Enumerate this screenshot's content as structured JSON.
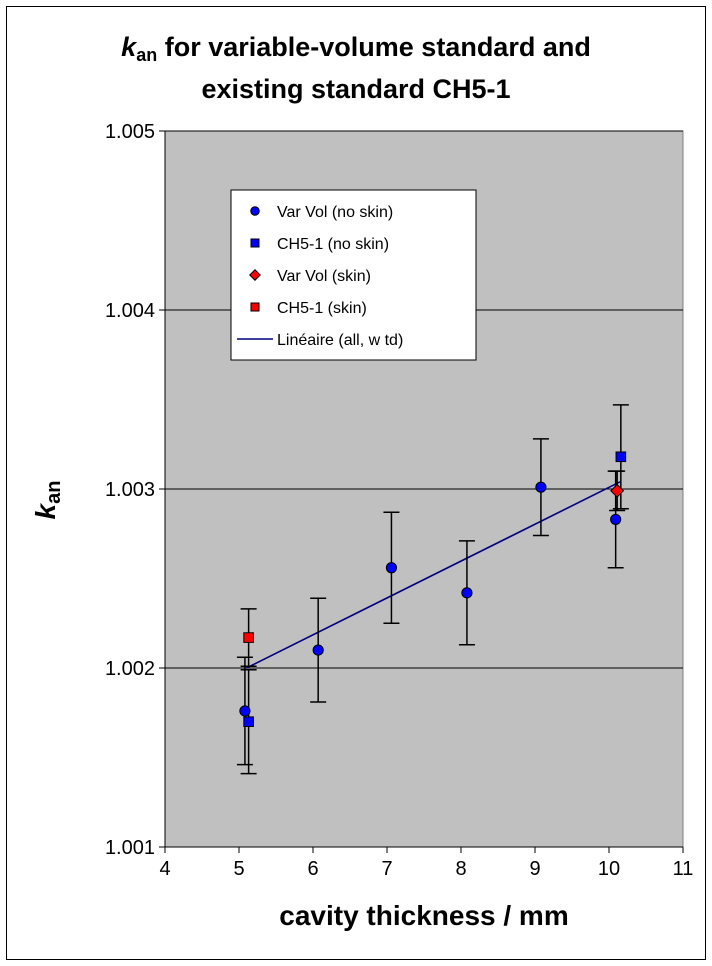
{
  "chart_data": {
    "type": "scatter",
    "title": {
      "line1_italic": "k",
      "line1_sub": "an",
      "line1_rest": " for variable-volume standard and",
      "line2": "existing standard CH5-1"
    },
    "xlabel": "cavity thickness / mm",
    "ylabel": {
      "italic": "k",
      "sub": "an"
    },
    "xlim": [
      4,
      11
    ],
    "ylim": [
      1.001,
      1.005
    ],
    "x_ticks": [
      "4",
      "5",
      "6",
      "7",
      "8",
      "9",
      "10",
      "11"
    ],
    "y_ticks": [
      "1.001",
      "1.002",
      "1.003",
      "1.004",
      "1.005"
    ],
    "y_tick_values": [
      1.001,
      1.002,
      1.003,
      1.004,
      1.005
    ],
    "grid": "horizontal",
    "legend_position": "upper-left",
    "series": [
      {
        "name": "Var Vol (no skin)",
        "marker": "circle",
        "color": "#0000ff",
        "points": [
          {
            "x": 5.08,
            "y": 1.00176,
            "err": 0.0003
          },
          {
            "x": 6.07,
            "y": 1.0021,
            "err": 0.00029
          },
          {
            "x": 7.06,
            "y": 1.00256,
            "err": 0.00031
          },
          {
            "x": 8.08,
            "y": 1.00242,
            "err": 0.00029
          },
          {
            "x": 9.08,
            "y": 1.00301,
            "err": 0.00027
          },
          {
            "x": 10.09,
            "y": 1.00283,
            "err": 0.00027
          }
        ]
      },
      {
        "name": "CH5-1 (no skin)",
        "marker": "square",
        "color": "#0000ff",
        "points": [
          {
            "x": 5.13,
            "y": 1.0017,
            "err": 0.00029
          },
          {
            "x": 10.16,
            "y": 1.00318,
            "err": 0.00029
          }
        ]
      },
      {
        "name": "Var Vol (skin)",
        "marker": "diamond",
        "color": "#ff0000",
        "points": [
          {
            "x": 10.11,
            "y": 1.00299,
            "err": 0.00011
          }
        ]
      },
      {
        "name": "CH5-1 (skin)",
        "marker": "square",
        "color": "#ff0000",
        "points": [
          {
            "x": 5.13,
            "y": 1.00217,
            "err": 0.00016
          }
        ]
      },
      {
        "name": "Linéaire (all, w td)",
        "marker": "line",
        "color": "#000080",
        "points": [
          {
            "x": 5.1,
            "y": 1.002
          },
          {
            "x": 10.15,
            "y": 1.00304
          }
        ]
      }
    ]
  }
}
